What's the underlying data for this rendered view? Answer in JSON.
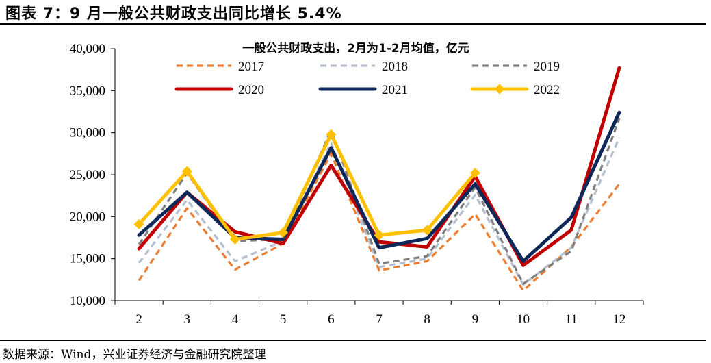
{
  "figure": {
    "title": "图表 7：9 月一般公共财政支出同比增长 5.4%",
    "source": "数据来源：Wind，兴业证券经济与金融研究院整理"
  },
  "chart_data": {
    "type": "line",
    "title": "一般公共财政支出，2月为1-2月均值，亿元",
    "categories": [
      "2",
      "3",
      "4",
      "5",
      "6",
      "7",
      "8",
      "9",
      "10",
      "11",
      "12"
    ],
    "ylim": [
      10000,
      40000
    ],
    "yticks": [
      10000,
      15000,
      20000,
      25000,
      30000,
      35000,
      40000
    ],
    "ytick_labels": [
      "10,000",
      "15,000",
      "20,000",
      "25,000",
      "30,000",
      "35,000",
      "40,000"
    ],
    "grid": false,
    "legend_position": "top",
    "series": [
      {
        "name": "2017",
        "color": "#ED7D31",
        "style": "dashed",
        "values": [
          12400,
          21000,
          13700,
          16800,
          27500,
          13600,
          14700,
          20300,
          11200,
          16400,
          23900
        ]
      },
      {
        "name": "2018",
        "color": "#B4BFCF",
        "style": "dashed",
        "values": [
          14500,
          22000,
          14700,
          17100,
          28800,
          14000,
          15000,
          22600,
          11900,
          16300,
          29400
        ]
      },
      {
        "name": "2019",
        "color": "#7F7F7F",
        "style": "dashed",
        "values": [
          16700,
          25200,
          17100,
          17300,
          30300,
          14400,
          15300,
          23500,
          12000,
          15900,
          31700
        ]
      },
      {
        "name": "2020",
        "color": "#C00000",
        "style": "solid",
        "values": [
          16200,
          22900,
          18200,
          16800,
          26100,
          17000,
          16400,
          24800,
          14200,
          18400,
          37700
        ]
      },
      {
        "name": "2021",
        "color": "#0D2859",
        "style": "solid",
        "values": [
          17800,
          22900,
          17500,
          17300,
          28200,
          16300,
          17400,
          23900,
          14700,
          19900,
          32400
        ]
      },
      {
        "name": "2022",
        "color": "#FFC000",
        "style": "solid-marker",
        "values": [
          19100,
          25400,
          17300,
          18100,
          29800,
          17800,
          18400,
          25200,
          null,
          null,
          null
        ]
      }
    ]
  }
}
